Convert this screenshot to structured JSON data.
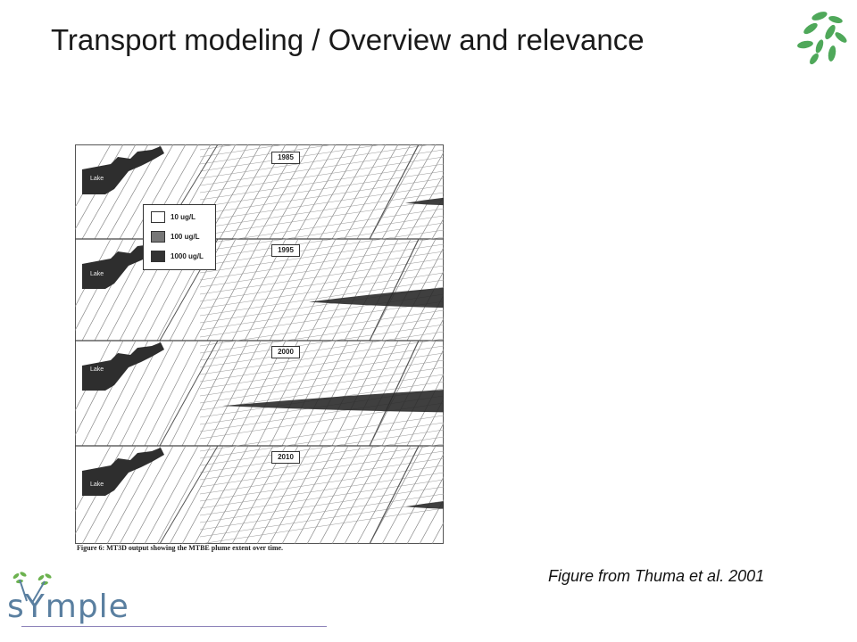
{
  "title": "Transport modeling / Overview and relevance",
  "figure": {
    "caption": "Figure 6: MT3D output showing the MTBE plume extent over time.",
    "years": [
      "1985",
      "1995",
      "2000",
      "2010"
    ],
    "lake_label": "Lake",
    "legend": [
      {
        "label": "10 ug/L",
        "color": "#ffffff"
      },
      {
        "label": "100 ug/L",
        "color": "#777777"
      },
      {
        "label": "1000 ug/L",
        "color": "#333333"
      }
    ]
  },
  "credit": "Figure from Thuma et al. 2001",
  "brand": {
    "logo_text": "sYmple",
    "leaf_color": "#4fa85a",
    "text_color": "#5a7fa0",
    "line_color": "#8a80b8"
  }
}
